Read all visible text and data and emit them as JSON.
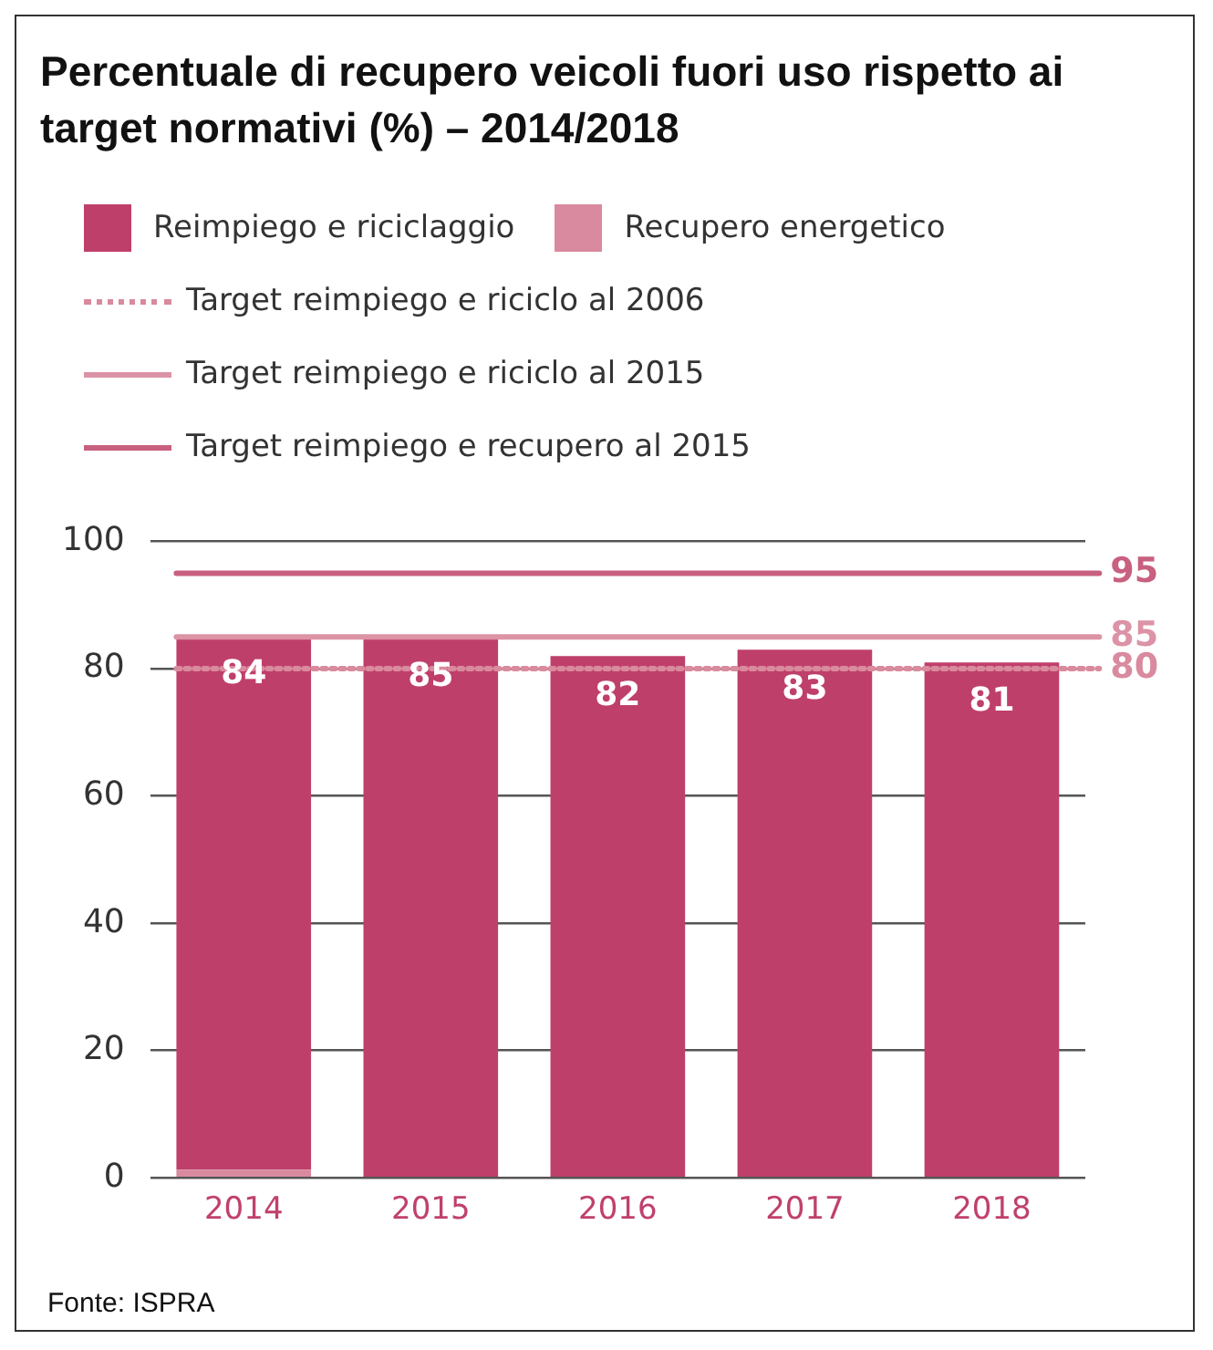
{
  "chart_data": {
    "type": "bar",
    "title": "Percentuale di recupero veicoli fuori uso rispetto ai target normativi (%) – 2014/2018",
    "categories": [
      "2014",
      "2015",
      "2016",
      "2017",
      "2018"
    ],
    "stacked": true,
    "series": [
      {
        "name": "Recupero energetico",
        "color": "#d98a9e",
        "values": [
          1.3,
          null,
          null,
          null,
          null
        ]
      },
      {
        "name": "Reimpiego e riciclaggio",
        "color": "#bf3f6b",
        "values": [
          84,
          85,
          82,
          83,
          81
        ],
        "value_labels": [
          "84",
          "85",
          "82",
          "83",
          "81"
        ]
      }
    ],
    "ylim": [
      0,
      100
    ],
    "yticks": [
      0,
      20,
      40,
      60,
      80,
      100
    ],
    "grid": "y",
    "legend": "top",
    "ref_lines": [
      {
        "axis": "y",
        "value": 80,
        "label": "Target reimpiego e riciclo al 2006",
        "color": "#d98a9e",
        "line_style": "dotted"
      },
      {
        "axis": "y",
        "value": 85,
        "label": "Target reimpiego e riciclo al 2015",
        "color": "#dc93a6",
        "line_style": "solid"
      },
      {
        "axis": "y",
        "value": 95,
        "label": "Target reimpiego e recupero al 2015",
        "color": "#c8607f",
        "line_style": "solid"
      }
    ],
    "annotations": [
      "80",
      "85",
      "95",
      "Fonte: ISPRA"
    ]
  }
}
